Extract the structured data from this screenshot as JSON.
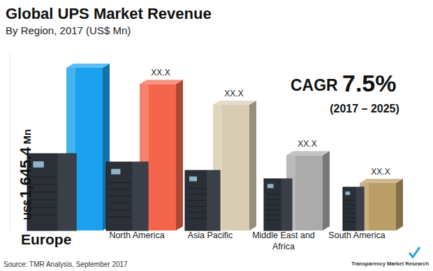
{
  "chart_data": {
    "type": "bar",
    "title": "Global UPS Market Revenue",
    "subtitle": "By Region, 2017 (US$ Mn)",
    "categories": [
      "Europe",
      "North America",
      "Asia Pacific",
      "Middle East and Africa",
      "South America"
    ],
    "values": [
      1645.4,
      1480,
      1270,
      760,
      480
    ],
    "value_labels": [
      "US$ 1,645.4 Mn",
      "XX.X",
      "XX.X",
      "XX.X",
      "XX.X"
    ],
    "colors": [
      "#1ba2ee",
      "#f4654c",
      "#d8ccb2",
      "#ababab",
      "#b99e68"
    ],
    "ylim": [
      0,
      1800
    ],
    "tick_labels": false,
    "grid": false,
    "annotations": [
      "CAGR",
      "7.5%",
      "(2017 – 2025)"
    ],
    "source": "Source: TMR Analysis, September 2017",
    "logo": "Transparency Market Research"
  }
}
